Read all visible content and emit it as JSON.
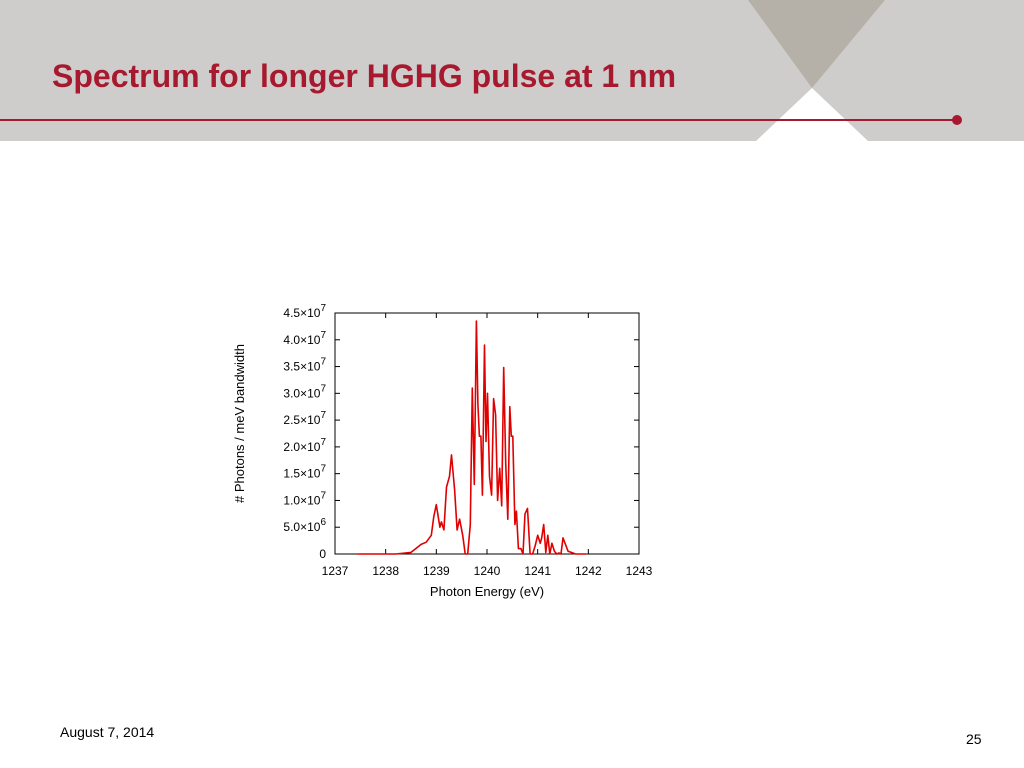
{
  "slide": {
    "title": "Spectrum for longer HGHG pulse at 1 nm",
    "date": "August 7, 2014",
    "page_number": "25",
    "accent_color": "#a6192e",
    "header_color": "#cfcdcb"
  },
  "chart_data": {
    "type": "line",
    "title": "",
    "xlabel": "Photon Energy (eV)",
    "ylabel": "# Photons / meV bandwidth",
    "xlim": [
      1237,
      1243
    ],
    "ylim": [
      0,
      45000000
    ],
    "x_ticks": [
      1237,
      1238,
      1239,
      1240,
      1241,
      1242,
      1243
    ],
    "x_tick_labels": [
      "1237",
      "1238",
      "1239",
      "1240",
      "1241",
      "1242",
      "1243"
    ],
    "y_ticks": [
      {
        "value": 0,
        "mantissa": "0",
        "exp": ""
      },
      {
        "value": 5000000,
        "mantissa": "5.0×10",
        "exp": "6"
      },
      {
        "value": 10000000,
        "mantissa": "1.0×10",
        "exp": "7"
      },
      {
        "value": 15000000,
        "mantissa": "1.5×10",
        "exp": "7"
      },
      {
        "value": 20000000,
        "mantissa": "2.0×10",
        "exp": "7"
      },
      {
        "value": 25000000,
        "mantissa": "2.5×10",
        "exp": "7"
      },
      {
        "value": 30000000,
        "mantissa": "3.0×10",
        "exp": "7"
      },
      {
        "value": 35000000,
        "mantissa": "3.5×10",
        "exp": "7"
      },
      {
        "value": 40000000,
        "mantissa": "4.0×10",
        "exp": "7"
      },
      {
        "value": 45000000,
        "mantissa": "4.5×10",
        "exp": "7"
      }
    ],
    "grid": false,
    "legend": "none",
    "series": [
      {
        "color": "#e00000",
        "x": [
          1237.45,
          1238.2,
          1238.5,
          1238.7,
          1238.8,
          1238.9,
          1238.95,
          1239.0,
          1239.07,
          1239.1,
          1239.15,
          1239.2,
          1239.26,
          1239.3,
          1239.36,
          1239.41,
          1239.46,
          1239.52,
          1239.57,
          1239.62,
          1239.67,
          1239.71,
          1239.75,
          1239.79,
          1239.82,
          1239.85,
          1239.88,
          1239.91,
          1239.95,
          1239.98,
          1240.01,
          1240.05,
          1240.09,
          1240.13,
          1240.17,
          1240.21,
          1240.25,
          1240.29,
          1240.33,
          1240.37,
          1240.41,
          1240.45,
          1240.48,
          1240.51,
          1240.55,
          1240.58,
          1240.62,
          1240.67,
          1240.71,
          1240.75,
          1240.8,
          1240.85,
          1240.9,
          1240.95,
          1241.0,
          1241.05,
          1241.08,
          1241.12,
          1241.16,
          1241.2,
          1241.24,
          1241.28,
          1241.33,
          1241.38,
          1241.42,
          1241.46,
          1241.5,
          1241.6,
          1241.75,
          1241.95
        ],
        "y": [
          0,
          0,
          300000,
          1800000,
          2200000,
          3500000,
          7000000,
          9200000,
          5000000,
          6000000,
          4500000,
          12500000,
          14500000,
          18500000,
          12000000,
          4500000,
          6500000,
          3500000,
          0,
          0,
          5500000,
          31000000,
          13000000,
          43500000,
          28000000,
          22000000,
          22000000,
          11000000,
          39000000,
          21000000,
          30000000,
          14500000,
          11000000,
          29000000,
          26000000,
          10000000,
          16000000,
          9000000,
          34800000,
          17000000,
          6500000,
          27500000,
          22000000,
          22000000,
          5500000,
          8000000,
          1000000,
          1000000,
          0,
          7500000,
          8500000,
          0,
          0,
          1500000,
          3500000,
          2000000,
          3000000,
          5500000,
          300000,
          3500000,
          0,
          2000000,
          500000,
          0,
          200000,
          0,
          3000000,
          500000,
          0,
          0
        ]
      }
    ]
  }
}
